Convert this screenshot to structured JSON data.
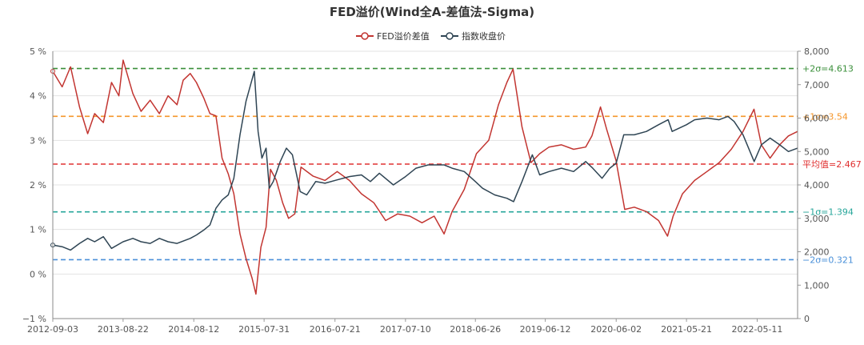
{
  "chart_data": {
    "type": "line",
    "title": "FED溢价(Wind全A-差值法-Sigma)",
    "legend": {
      "placement": "top-center",
      "items": [
        {
          "name": "FED溢价差值",
          "color": "#c23531"
        },
        {
          "name": "指数收盘价",
          "color": "#2f4554"
        }
      ]
    },
    "x": {
      "tick_labels": [
        "2012-09-03",
        "2013-08-22",
        "2014-08-12",
        "2015-07-31",
        "2016-07-21",
        "2017-07-10",
        "2018-06-26",
        "2019-06-12",
        "2020-06-02",
        "2021-05-21",
        "2022-05-11"
      ],
      "range": [
        "2012-09-03",
        "2022-11-30"
      ]
    },
    "y_left": {
      "tick_labels": [
        "−1 %",
        "0 %",
        "1 %",
        "2 %",
        "3 %",
        "4 %",
        "5 %"
      ],
      "range": [
        -1,
        5
      ]
    },
    "y_right": {
      "tick_labels": [
        "0",
        "1,000",
        "2,000",
        "3,000",
        "4,000",
        "5,000",
        "6,000",
        "7,000",
        "8,000"
      ],
      "range": [
        0,
        8000
      ]
    },
    "reference_lines": [
      {
        "label": "+2σ=4.613",
        "value": 4.613,
        "color": "#3a8f3a"
      },
      {
        "label": "+1σ=3.54",
        "value": 3.54,
        "color": "#f5962a"
      },
      {
        "label": "平均值=2.467",
        "value": 2.467,
        "color": "#e03030"
      },
      {
        "label": "−1σ=1.394",
        "value": 1.394,
        "color": "#26a69a"
      },
      {
        "label": "−2σ=0.321",
        "value": 0.321,
        "color": "#4a90d9"
      }
    ],
    "series": [
      {
        "name": "FED溢价差值",
        "axis": "left",
        "color": "#c23531",
        "points": [
          [
            "2012-09-03",
            4.55
          ],
          [
            "2012-10-20",
            4.2
          ],
          [
            "2012-12-01",
            4.65
          ],
          [
            "2013-01-15",
            3.75
          ],
          [
            "2013-02-25",
            3.15
          ],
          [
            "2013-04-01",
            3.6
          ],
          [
            "2013-05-15",
            3.4
          ],
          [
            "2013-06-25",
            4.3
          ],
          [
            "2013-08-01",
            4.0
          ],
          [
            "2013-08-22",
            4.8
          ],
          [
            "2013-10-10",
            4.05
          ],
          [
            "2013-11-20",
            3.65
          ],
          [
            "2014-01-05",
            3.9
          ],
          [
            "2014-02-20",
            3.6
          ],
          [
            "2014-04-05",
            4.0
          ],
          [
            "2014-05-20",
            3.8
          ],
          [
            "2014-06-20",
            4.35
          ],
          [
            "2014-07-25",
            4.5
          ],
          [
            "2014-08-25",
            4.3
          ],
          [
            "2014-10-01",
            3.95
          ],
          [
            "2014-11-01",
            3.6
          ],
          [
            "2014-12-01",
            3.55
          ],
          [
            "2015-01-01",
            2.6
          ],
          [
            "2015-02-01",
            2.25
          ],
          [
            "2015-03-01",
            1.8
          ],
          [
            "2015-04-01",
            0.9
          ],
          [
            "2015-05-01",
            0.35
          ],
          [
            "2015-06-01",
            -0.1
          ],
          [
            "2015-06-20",
            -0.45
          ],
          [
            "2015-07-15",
            0.6
          ],
          [
            "2015-08-10",
            1.05
          ],
          [
            "2015-09-01",
            2.35
          ],
          [
            "2015-10-01",
            2.1
          ],
          [
            "2015-11-01",
            1.6
          ],
          [
            "2015-12-01",
            1.25
          ],
          [
            "2016-01-01",
            1.35
          ],
          [
            "2016-02-01",
            2.4
          ],
          [
            "2016-04-01",
            2.2
          ],
          [
            "2016-06-01",
            2.1
          ],
          [
            "2016-08-01",
            2.3
          ],
          [
            "2016-10-01",
            2.1
          ],
          [
            "2016-12-01",
            1.8
          ],
          [
            "2017-02-01",
            1.6
          ],
          [
            "2017-04-01",
            1.2
          ],
          [
            "2017-06-01",
            1.35
          ],
          [
            "2017-08-01",
            1.3
          ],
          [
            "2017-10-01",
            1.15
          ],
          [
            "2017-12-01",
            1.3
          ],
          [
            "2018-01-20",
            0.9
          ],
          [
            "2018-03-01",
            1.4
          ],
          [
            "2018-05-01",
            1.9
          ],
          [
            "2018-07-01",
            2.7
          ],
          [
            "2018-09-01",
            3.0
          ],
          [
            "2018-10-20",
            3.8
          ],
          [
            "2018-12-01",
            4.3
          ],
          [
            "2019-01-01",
            4.6
          ],
          [
            "2019-02-15",
            3.3
          ],
          [
            "2019-04-01",
            2.5
          ],
          [
            "2019-05-15",
            2.7
          ],
          [
            "2019-07-01",
            2.85
          ],
          [
            "2019-09-01",
            2.9
          ],
          [
            "2019-11-01",
            2.8
          ],
          [
            "2020-01-01",
            2.85
          ],
          [
            "2020-02-01",
            3.1
          ],
          [
            "2020-03-15",
            3.75
          ],
          [
            "2020-04-15",
            3.25
          ],
          [
            "2020-06-01",
            2.55
          ],
          [
            "2020-07-15",
            1.45
          ],
          [
            "2020-09-01",
            1.5
          ],
          [
            "2020-11-01",
            1.4
          ],
          [
            "2021-01-01",
            1.2
          ],
          [
            "2021-02-15",
            0.85
          ],
          [
            "2021-03-15",
            1.3
          ],
          [
            "2021-05-01",
            1.8
          ],
          [
            "2021-07-01",
            2.1
          ],
          [
            "2021-09-01",
            2.3
          ],
          [
            "2021-11-01",
            2.5
          ],
          [
            "2022-01-01",
            2.8
          ],
          [
            "2022-03-01",
            3.2
          ],
          [
            "2022-04-25",
            3.7
          ],
          [
            "2022-06-01",
            2.9
          ],
          [
            "2022-07-15",
            2.6
          ],
          [
            "2022-09-01",
            2.9
          ],
          [
            "2022-10-15",
            3.1
          ],
          [
            "2022-11-30",
            3.2
          ]
        ]
      },
      {
        "name": "指数收盘价",
        "axis": "right",
        "color": "#2f4554",
        "points": [
          [
            "2012-09-03",
            2200
          ],
          [
            "2012-10-20",
            2150
          ],
          [
            "2012-12-01",
            2050
          ],
          [
            "2013-01-15",
            2250
          ],
          [
            "2013-02-25",
            2400
          ],
          [
            "2013-04-01",
            2300
          ],
          [
            "2013-05-15",
            2450
          ],
          [
            "2013-06-25",
            2100
          ],
          [
            "2013-08-22",
            2300
          ],
          [
            "2013-10-10",
            2400
          ],
          [
            "2013-11-20",
            2300
          ],
          [
            "2014-01-05",
            2250
          ],
          [
            "2014-02-20",
            2400
          ],
          [
            "2014-04-05",
            2300
          ],
          [
            "2014-05-20",
            2250
          ],
          [
            "2014-07-25",
            2400
          ],
          [
            "2014-08-25",
            2500
          ],
          [
            "2014-10-01",
            2650
          ],
          [
            "2014-11-01",
            2800
          ],
          [
            "2014-12-01",
            3300
          ],
          [
            "2015-01-01",
            3550
          ],
          [
            "2015-02-01",
            3700
          ],
          [
            "2015-03-01",
            4200
          ],
          [
            "2015-04-01",
            5500
          ],
          [
            "2015-05-01",
            6500
          ],
          [
            "2015-06-12",
            7400
          ],
          [
            "2015-07-01",
            5600
          ],
          [
            "2015-07-20",
            4800
          ],
          [
            "2015-08-10",
            5100
          ],
          [
            "2015-08-26",
            3900
          ],
          [
            "2015-09-15",
            4100
          ],
          [
            "2015-10-20",
            4700
          ],
          [
            "2015-11-20",
            5100
          ],
          [
            "2015-12-20",
            4900
          ],
          [
            "2016-01-28",
            3800
          ],
          [
            "2016-03-01",
            3700
          ],
          [
            "2016-04-15",
            4100
          ],
          [
            "2016-06-01",
            4050
          ],
          [
            "2016-08-01",
            4150
          ],
          [
            "2016-10-01",
            4250
          ],
          [
            "2016-12-01",
            4300
          ],
          [
            "2017-01-15",
            4100
          ],
          [
            "2017-03-01",
            4350
          ],
          [
            "2017-05-10",
            4000
          ],
          [
            "2017-07-10",
            4250
          ],
          [
            "2017-09-01",
            4500
          ],
          [
            "2017-11-01",
            4600
          ],
          [
            "2018-01-20",
            4600
          ],
          [
            "2018-03-01",
            4500
          ],
          [
            "2018-05-01",
            4400
          ],
          [
            "2018-06-26",
            4100
          ],
          [
            "2018-08-01",
            3900
          ],
          [
            "2018-10-01",
            3700
          ],
          [
            "2018-12-01",
            3600
          ],
          [
            "2019-01-04",
            3500
          ],
          [
            "2019-02-15",
            4100
          ],
          [
            "2019-04-08",
            4900
          ],
          [
            "2019-05-15",
            4300
          ],
          [
            "2019-07-01",
            4400
          ],
          [
            "2019-09-01",
            4500
          ],
          [
            "2019-11-01",
            4400
          ],
          [
            "2020-01-01",
            4700
          ],
          [
            "2020-02-05",
            4500
          ],
          [
            "2020-03-23",
            4200
          ],
          [
            "2020-05-01",
            4500
          ],
          [
            "2020-06-02",
            4650
          ],
          [
            "2020-07-10",
            5500
          ],
          [
            "2020-09-01",
            5500
          ],
          [
            "2020-11-01",
            5600
          ],
          [
            "2021-01-01",
            5800
          ],
          [
            "2021-02-18",
            5950
          ],
          [
            "2021-03-10",
            5600
          ],
          [
            "2021-05-21",
            5800
          ],
          [
            "2021-07-01",
            5950
          ],
          [
            "2021-09-01",
            6000
          ],
          [
            "2021-11-01",
            5950
          ],
          [
            "2021-12-15",
            6050
          ],
          [
            "2022-01-15",
            5900
          ],
          [
            "2022-03-01",
            5500
          ],
          [
            "2022-04-26",
            4700
          ],
          [
            "2022-06-01",
            5200
          ],
          [
            "2022-07-15",
            5400
          ],
          [
            "2022-09-01",
            5200
          ],
          [
            "2022-10-15",
            5000
          ],
          [
            "2022-11-30",
            5100
          ]
        ]
      }
    ]
  }
}
